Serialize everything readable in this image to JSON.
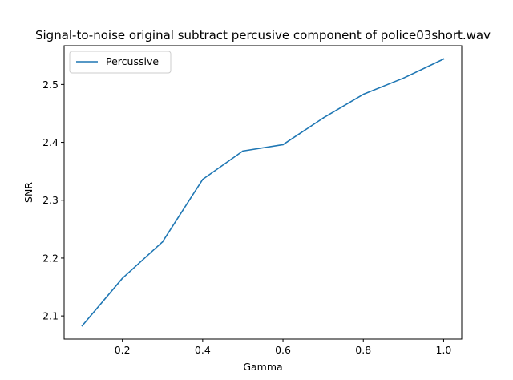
{
  "chart_data": {
    "type": "line",
    "title": "Signal-to-noise original subtract percusive component of police03short.wav",
    "xlabel": "Gamma",
    "ylabel": "SNR",
    "x": [
      0.1,
      0.2,
      0.3,
      0.4,
      0.5,
      0.6,
      0.7,
      0.8,
      0.9,
      1.0
    ],
    "series": [
      {
        "name": "Percussive",
        "color": "#1f77b4",
        "values": [
          2.083,
          2.165,
          2.228,
          2.336,
          2.385,
          2.396,
          2.442,
          2.483,
          2.511,
          2.544
        ]
      }
    ],
    "xlim": [
      0.055,
      1.045
    ],
    "ylim": [
      2.06,
      2.567
    ],
    "xticks": [
      0.2,
      0.4,
      0.6,
      0.8,
      1.0
    ],
    "xtick_labels": [
      "0.2",
      "0.4",
      "0.6",
      "0.8",
      "1.0"
    ],
    "yticks": [
      2.1,
      2.2,
      2.3,
      2.4,
      2.5
    ],
    "ytick_labels": [
      "2.1",
      "2.2",
      "2.3",
      "2.4",
      "2.5"
    ],
    "grid": false,
    "legend_position": "upper-left"
  }
}
